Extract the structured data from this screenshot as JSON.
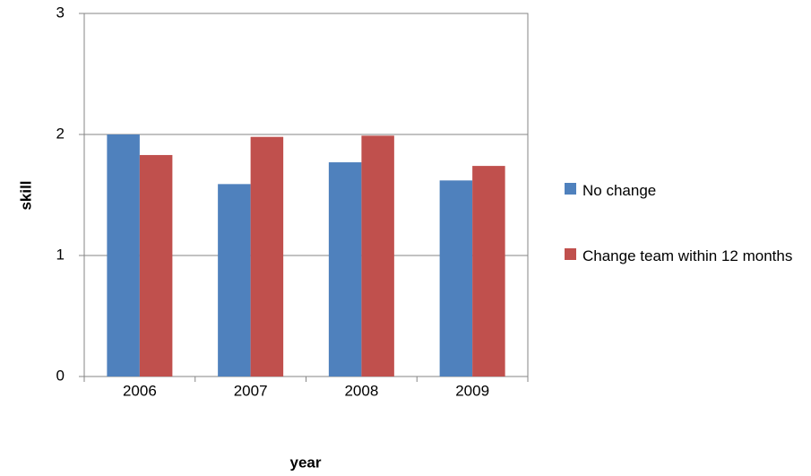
{
  "chart_data": {
    "type": "bar",
    "x_label": "year",
    "y_label": "skill",
    "categories": [
      "2006",
      "2007",
      "2008",
      "2009"
    ],
    "series": [
      {
        "name": "No change",
        "color": "#4f81bd",
        "values": [
          2.0,
          1.59,
          1.77,
          1.62
        ]
      },
      {
        "name": "Change team within 12 months",
        "color": "#c0504d",
        "values": [
          1.83,
          1.98,
          1.99,
          1.74
        ]
      }
    ],
    "ylim": [
      0,
      3
    ],
    "yticks": [
      0,
      1,
      2,
      3
    ],
    "grid": true,
    "legend": "right"
  }
}
